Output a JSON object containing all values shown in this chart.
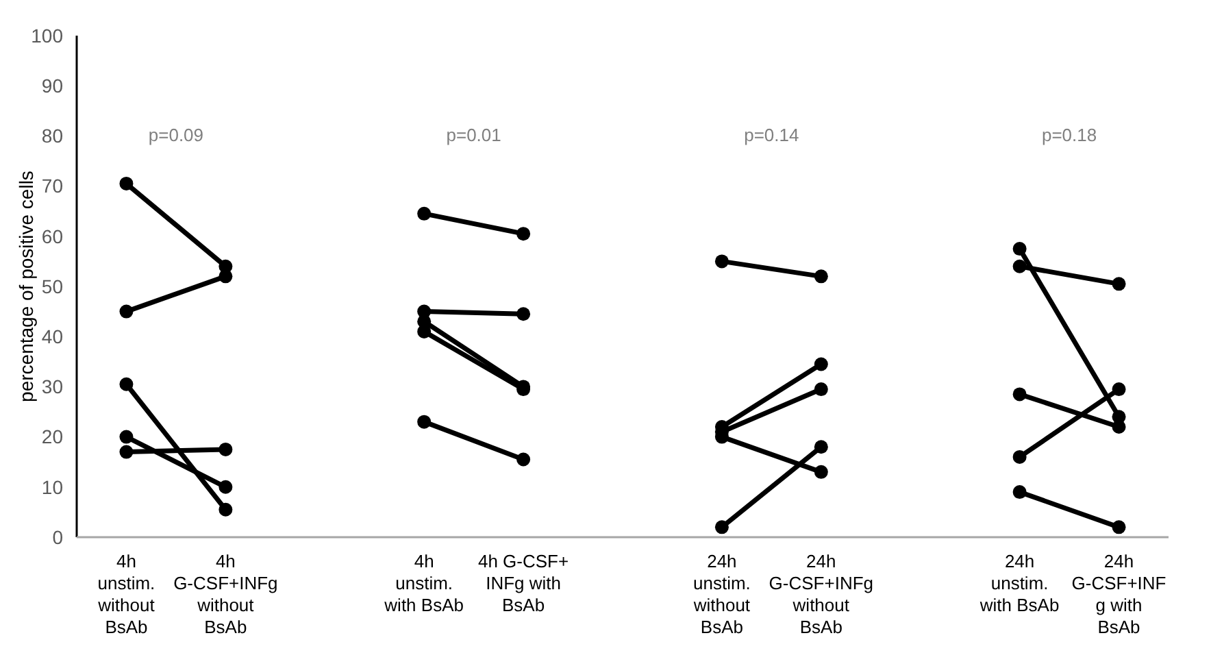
{
  "chart_data": {
    "type": "line",
    "ylabel": "percentage of positive cells",
    "categories": [
      "4h unstim. without BsAb",
      "4h G-CSF+INFg without BsAb",
      null,
      "4h unstim. with BsAb",
      "4h G-CSF+ INFg with BsAb",
      null,
      "24h unstim. without BsAb",
      "24h G-CSF+INFg without BsAb",
      null,
      "24h unstim. with BsAb",
      "24h G-CSF+INF g with BsAb"
    ],
    "ylim": [
      0,
      100
    ],
    "yticks": [
      0,
      10,
      20,
      30,
      40,
      50,
      60,
      70,
      80,
      90,
      100
    ],
    "grid": false,
    "marker": "circle",
    "line_style": "solid",
    "annotations": [
      "p=0.09",
      "p=0.01",
      "p=0.14",
      "p=0.18"
    ],
    "series": [
      {
        "color": "#000000",
        "values": [
          70.5,
          54,
          null,
          null,
          null,
          null,
          null,
          null,
          null,
          null,
          null
        ]
      },
      {
        "color": "#000000",
        "values": [
          45,
          52,
          null,
          null,
          null,
          null,
          null,
          null,
          null,
          null,
          null
        ]
      },
      {
        "color": "#000000",
        "values": [
          30.5,
          5.5,
          null,
          null,
          null,
          null,
          null,
          null,
          null,
          null,
          null
        ]
      },
      {
        "color": "#000000",
        "values": [
          20,
          10,
          null,
          null,
          null,
          null,
          null,
          null,
          null,
          null,
          null
        ]
      },
      {
        "color": "#000000",
        "values": [
          17,
          17.5,
          null,
          null,
          null,
          null,
          null,
          null,
          null,
          null,
          null
        ]
      },
      {
        "color": "#000000",
        "values": [
          null,
          null,
          null,
          64.5,
          60.5,
          null,
          null,
          null,
          null,
          null,
          null
        ]
      },
      {
        "color": "#000000",
        "values": [
          null,
          null,
          null,
          45,
          44.5,
          null,
          null,
          null,
          null,
          null,
          null
        ]
      },
      {
        "color": "#000000",
        "values": [
          null,
          null,
          null,
          43,
          30,
          null,
          null,
          null,
          null,
          null,
          null
        ]
      },
      {
        "color": "#000000",
        "values": [
          null,
          null,
          null,
          41,
          29.5,
          null,
          null,
          null,
          null,
          null,
          null
        ]
      },
      {
        "color": "#000000",
        "values": [
          null,
          null,
          null,
          23,
          15.5,
          null,
          null,
          null,
          null,
          null,
          null
        ]
      },
      {
        "color": "#000000",
        "values": [
          null,
          null,
          null,
          null,
          null,
          null,
          55,
          52,
          null,
          null,
          null
        ]
      },
      {
        "color": "#000000",
        "values": [
          null,
          null,
          null,
          null,
          null,
          null,
          22,
          34.5,
          null,
          null,
          null
        ]
      },
      {
        "color": "#000000",
        "values": [
          null,
          null,
          null,
          null,
          null,
          null,
          21,
          29.5,
          null,
          null,
          null
        ]
      },
      {
        "color": "#000000",
        "values": [
          null,
          null,
          null,
          null,
          null,
          null,
          20,
          13,
          null,
          null,
          null
        ]
      },
      {
        "color": "#000000",
        "values": [
          null,
          null,
          null,
          null,
          null,
          null,
          2,
          18,
          null,
          null,
          null
        ]
      },
      {
        "color": "#000000",
        "values": [
          null,
          null,
          null,
          null,
          null,
          null,
          null,
          null,
          null,
          57.5,
          24
        ]
      },
      {
        "color": "#000000",
        "values": [
          null,
          null,
          null,
          null,
          null,
          null,
          null,
          null,
          null,
          54,
          50.5
        ]
      },
      {
        "color": "#000000",
        "values": [
          null,
          null,
          null,
          null,
          null,
          null,
          null,
          null,
          null,
          28.5,
          22
        ]
      },
      {
        "color": "#000000",
        "values": [
          null,
          null,
          null,
          null,
          null,
          null,
          null,
          null,
          null,
          16,
          29.5
        ]
      },
      {
        "color": "#000000",
        "values": [
          null,
          null,
          null,
          null,
          null,
          null,
          null,
          null,
          null,
          9,
          2
        ]
      }
    ]
  }
}
